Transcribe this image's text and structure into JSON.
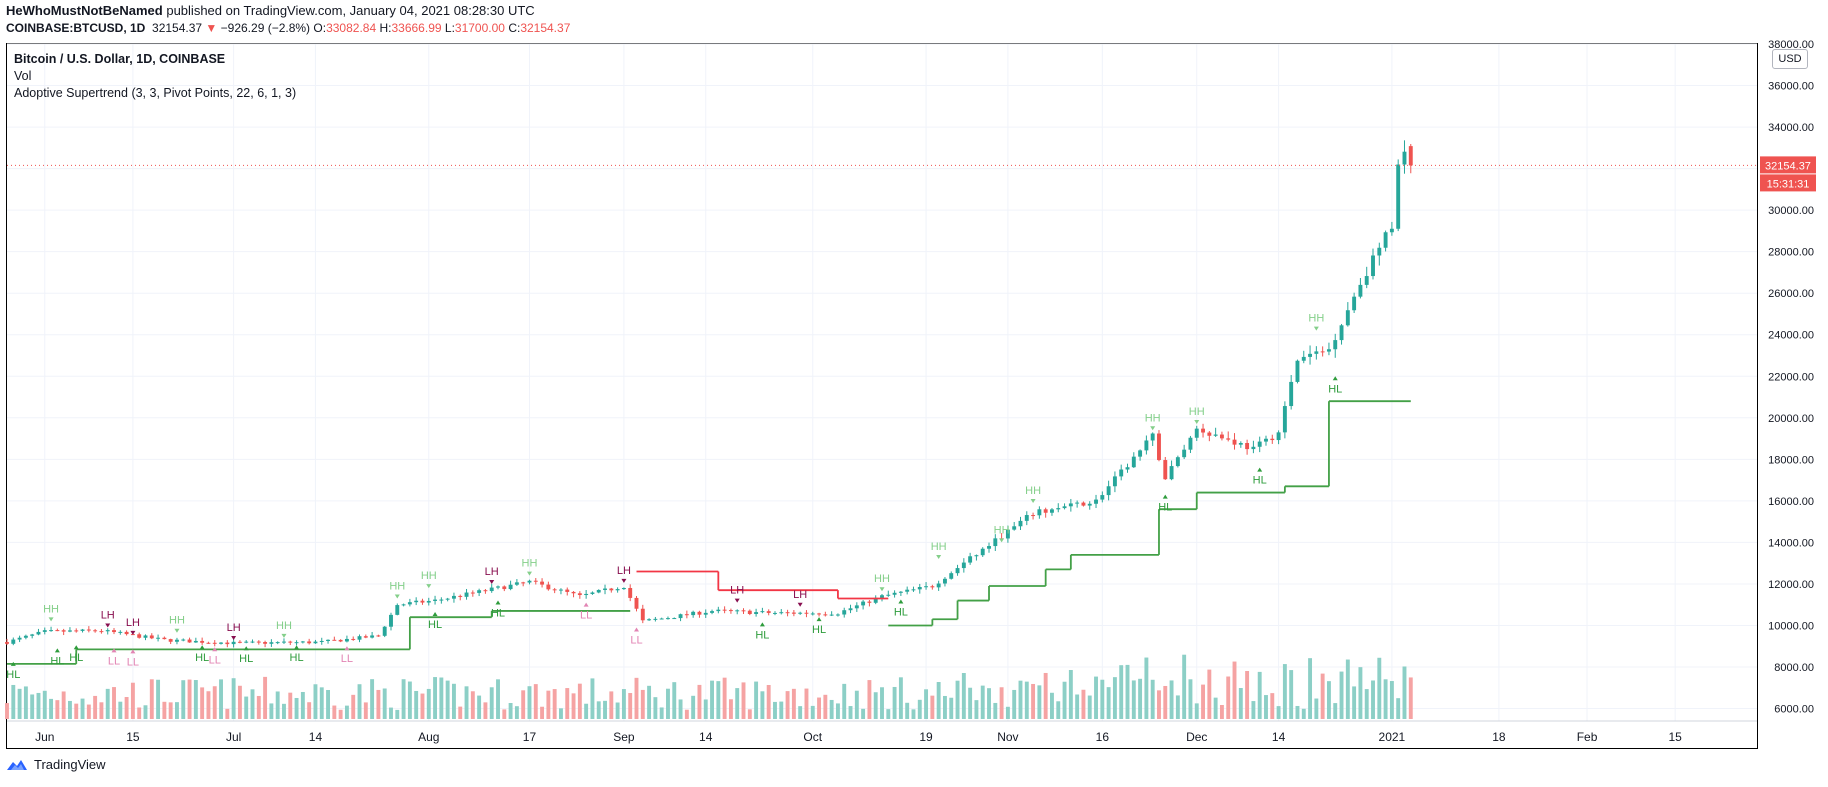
{
  "header": {
    "author": "HeWhoMustNotBeNamed",
    "published_text": " published on TradingView.com, January 04, 2021 08:28:30 UTC",
    "symbol": "COINBASE:BTCUSD, 1D",
    "last": "32154.37",
    "change_arrow": "▼",
    "change": "−926.29 (−2.8%)",
    "o_label": "O:",
    "o_value": "33082.84",
    "h_label": "H:",
    "h_value": "33666.99",
    "l_label": "L:",
    "l_value": "31700.00",
    "c_label": "C:",
    "c_value": "32154.37"
  },
  "legend": {
    "title": "Bitcoin / U.S. Dollar, 1D, COINBASE",
    "vol": "Vol",
    "indicator": "Adoptive Supertrend (3, 3, Pivot Points, 22, 6, 1, 3)"
  },
  "currency_button": "USD",
  "price_label": "32154.37",
  "countdown_label": "15:31:31",
  "footer": {
    "brand": "TradingView",
    "logo_icon": "tradingview-logo-icon"
  },
  "colors": {
    "up": "#26a69a",
    "down": "#ef5350",
    "vol_up": "#8ccfc6",
    "vol_down": "#f5a3a3",
    "trend_up": "#43a047",
    "trend_down": "#f23645",
    "label_hh": "#84cf8a",
    "label_hl": "#2e9c3c",
    "label_lh": "#880e4f",
    "label_ll": "#e285b4"
  },
  "chart_data": {
    "type": "candlestick",
    "y_range": [
      5400,
      38000
    ],
    "y_ticks": [
      "6000.00",
      "8000.00",
      "10000.00",
      "12000.00",
      "14000.00",
      "16000.00",
      "18000.00",
      "20000.00",
      "22000.00",
      "24000.00",
      "26000.00",
      "28000.00",
      "30000.00",
      "32000.00",
      "34000.00",
      "36000.00",
      "38000.00"
    ],
    "x_ticks": [
      {
        "label": "Jun",
        "date": "2020-06-01"
      },
      {
        "label": "15",
        "date": "2020-06-15"
      },
      {
        "label": "Jul",
        "date": "2020-07-01"
      },
      {
        "label": "14",
        "date": "2020-07-14"
      },
      {
        "label": "Aug",
        "date": "2020-08-01"
      },
      {
        "label": "17",
        "date": "2020-08-17"
      },
      {
        "label": "Sep",
        "date": "2020-09-01"
      },
      {
        "label": "14",
        "date": "2020-09-14"
      },
      {
        "label": "Oct",
        "date": "2020-10-01"
      },
      {
        "label": "19",
        "date": "2020-10-19"
      },
      {
        "label": "Nov",
        "date": "2020-11-01"
      },
      {
        "label": "16",
        "date": "2020-11-16"
      },
      {
        "label": "Dec",
        "date": "2020-12-01"
      },
      {
        "label": "14",
        "date": "2020-12-14"
      },
      {
        "label": "2021",
        "date": "2021-01-01"
      },
      {
        "label": "18",
        "date": "2021-01-18"
      },
      {
        "label": "Feb",
        "date": "2021-02-01"
      },
      {
        "label": "15",
        "date": "2021-02-15"
      }
    ],
    "start_date": "2020-05-26",
    "x_date_range": [
      "2020-05-26",
      "2021-02-28"
    ],
    "last_price": 32154.37,
    "close_path": [
      [
        "2020-05-26",
        9200
      ],
      [
        "2020-06-01",
        9700
      ],
      [
        "2020-06-10",
        9750
      ],
      [
        "2020-06-20",
        9300
      ],
      [
        "2020-07-01",
        9150
      ],
      [
        "2020-07-15",
        9200
      ],
      [
        "2020-07-24",
        9500
      ],
      [
        "2020-07-27",
        11000
      ],
      [
        "2020-08-02",
        11200
      ],
      [
        "2020-08-17",
        12100
      ],
      [
        "2020-08-25",
        11400
      ],
      [
        "2020-09-01",
        11900
      ],
      [
        "2020-09-04",
        10200
      ],
      [
        "2020-09-15",
        10700
      ],
      [
        "2020-09-25",
        10600
      ],
      [
        "2020-10-05",
        10600
      ],
      [
        "2020-10-12",
        11400
      ],
      [
        "2020-10-20",
        11900
      ],
      [
        "2020-10-25",
        13000
      ],
      [
        "2020-11-05",
        15400
      ],
      [
        "2020-11-15",
        16000
      ],
      [
        "2020-11-24",
        19100
      ],
      [
        "2020-11-26",
        17100
      ],
      [
        "2020-12-01",
        19500
      ],
      [
        "2020-12-10",
        18500
      ],
      [
        "2020-12-14",
        19300
      ],
      [
        "2020-12-17",
        22800
      ],
      [
        "2020-12-22",
        23300
      ],
      [
        "2020-12-27",
        26500
      ],
      [
        "2021-01-01",
        29300
      ],
      [
        "2021-01-02",
        32000
      ],
      [
        "2021-01-03",
        33082.84
      ],
      [
        "2021-01-04",
        32154.37
      ]
    ],
    "volume_range": [
      0,
      45000
    ],
    "supertrend": [
      {
        "from": "2020-05-26",
        "to": "2020-06-06",
        "value": 8150,
        "trend": "up"
      },
      {
        "from": "2020-06-06",
        "to": "2020-06-28",
        "value": 8850,
        "trend": "up"
      },
      {
        "from": "2020-06-28",
        "to": "2020-07-29",
        "value": 8850,
        "trend": "up"
      },
      {
        "from": "2020-07-29",
        "to": "2020-08-11",
        "value": 10400,
        "trend": "up"
      },
      {
        "from": "2020-08-11",
        "to": "2020-09-02",
        "value": 10700,
        "trend": "up"
      },
      {
        "from": "2020-09-03",
        "to": "2020-09-16",
        "value": 12600,
        "trend": "down"
      },
      {
        "from": "2020-09-16",
        "to": "2020-10-05",
        "value": 11700,
        "trend": "down"
      },
      {
        "from": "2020-10-05",
        "to": "2020-10-13",
        "value": 11300,
        "trend": "down"
      },
      {
        "from": "2020-10-13",
        "to": "2020-10-20",
        "value": 10000,
        "trend": "up"
      },
      {
        "from": "2020-10-20",
        "to": "2020-10-24",
        "value": 10300,
        "trend": "up"
      },
      {
        "from": "2020-10-24",
        "to": "2020-10-29",
        "value": 11200,
        "trend": "up"
      },
      {
        "from": "2020-10-29",
        "to": "2020-11-07",
        "value": 11900,
        "trend": "up"
      },
      {
        "from": "2020-11-07",
        "to": "2020-11-11",
        "value": 12700,
        "trend": "up"
      },
      {
        "from": "2020-11-11",
        "to": "2020-11-25",
        "value": 13400,
        "trend": "up"
      },
      {
        "from": "2020-11-25",
        "to": "2020-12-01",
        "value": 15600,
        "trend": "up"
      },
      {
        "from": "2020-12-01",
        "to": "2020-12-15",
        "value": 16400,
        "trend": "up"
      },
      {
        "from": "2020-12-15",
        "to": "2020-12-22",
        "value": 16700,
        "trend": "up"
      },
      {
        "from": "2020-12-22",
        "to": "2021-01-04",
        "value": 20800,
        "trend": "up"
      }
    ],
    "pivot_labels": [
      {
        "text": "HL",
        "date": "2020-05-27",
        "price": 8250,
        "kind": "HL",
        "pos": "below"
      },
      {
        "text": "HH",
        "date": "2020-06-02",
        "price": 10200,
        "kind": "HH",
        "pos": "above"
      },
      {
        "text": "HL",
        "date": "2020-06-03",
        "price": 8900,
        "kind": "HL",
        "pos": "below"
      },
      {
        "text": "HL",
        "date": "2020-06-06",
        "price": 9050,
        "kind": "HL",
        "pos": "below"
      },
      {
        "text": "LH",
        "date": "2020-06-11",
        "price": 9900,
        "kind": "LH",
        "pos": "above"
      },
      {
        "text": "LL",
        "date": "2020-06-12",
        "price": 8900,
        "kind": "LL",
        "pos": "below"
      },
      {
        "text": "LL",
        "date": "2020-06-15",
        "price": 8850,
        "kind": "LL",
        "pos": "below"
      },
      {
        "text": "LH",
        "date": "2020-06-15",
        "price": 9550,
        "kind": "LH",
        "pos": "above"
      },
      {
        "text": "HH",
        "date": "2020-06-22",
        "price": 9650,
        "kind": "HH",
        "pos": "above"
      },
      {
        "text": "HL",
        "date": "2020-06-26",
        "price": 9050,
        "kind": "HL",
        "pos": "below"
      },
      {
        "text": "LL",
        "date": "2020-06-28",
        "price": 8950,
        "kind": "LL",
        "pos": "below"
      },
      {
        "text": "LH",
        "date": "2020-07-01",
        "price": 9300,
        "kind": "LH",
        "pos": "above"
      },
      {
        "text": "HL",
        "date": "2020-07-03",
        "price": 9000,
        "kind": "HL",
        "pos": "below"
      },
      {
        "text": "HH",
        "date": "2020-07-09",
        "price": 9400,
        "kind": "HH",
        "pos": "above"
      },
      {
        "text": "HL",
        "date": "2020-07-11",
        "price": 9050,
        "kind": "HL",
        "pos": "below"
      },
      {
        "text": "LL",
        "date": "2020-07-19",
        "price": 9000,
        "kind": "LL",
        "pos": "below"
      },
      {
        "text": "HH",
        "date": "2020-07-27",
        "price": 11300,
        "kind": "HH",
        "pos": "above"
      },
      {
        "text": "HH",
        "date": "2020-08-01",
        "price": 11800,
        "kind": "HH",
        "pos": "above"
      },
      {
        "text": "HL",
        "date": "2020-08-02",
        "price": 10650,
        "kind": "HL",
        "pos": "below"
      },
      {
        "text": "LH",
        "date": "2020-08-11",
        "price": 12000,
        "kind": "LH",
        "pos": "above"
      },
      {
        "text": "HL",
        "date": "2020-08-12",
        "price": 11200,
        "kind": "HL",
        "pos": "below"
      },
      {
        "text": "HH",
        "date": "2020-08-17",
        "price": 12400,
        "kind": "HH",
        "pos": "above"
      },
      {
        "text": "LL",
        "date": "2020-08-26",
        "price": 11100,
        "kind": "LL",
        "pos": "below"
      },
      {
        "text": "LH",
        "date": "2020-09-01",
        "price": 12050,
        "kind": "LH",
        "pos": "above"
      },
      {
        "text": "LL",
        "date": "2020-09-03",
        "price": 9900,
        "kind": "LL",
        "pos": "below"
      },
      {
        "text": "LH",
        "date": "2020-09-19",
        "price": 11100,
        "kind": "LH",
        "pos": "above"
      },
      {
        "text": "HL",
        "date": "2020-09-23",
        "price": 10150,
        "kind": "HL",
        "pos": "below"
      },
      {
        "text": "LH",
        "date": "2020-09-29",
        "price": 10900,
        "kind": "LH",
        "pos": "above"
      },
      {
        "text": "HL",
        "date": "2020-10-02",
        "price": 10400,
        "kind": "HL",
        "pos": "below"
      },
      {
        "text": "HH",
        "date": "2020-10-12",
        "price": 11650,
        "kind": "HH",
        "pos": "above"
      },
      {
        "text": "HL",
        "date": "2020-10-15",
        "price": 11250,
        "kind": "HL",
        "pos": "below"
      },
      {
        "text": "HH",
        "date": "2020-10-21",
        "price": 13200,
        "kind": "HH",
        "pos": "above"
      },
      {
        "text": "HH",
        "date": "2020-11-05",
        "price": 15900,
        "kind": "HH",
        "pos": "above"
      },
      {
        "text": "HH",
        "date": "2020-10-31",
        "price": 14000,
        "kind": "HH",
        "pos": "above"
      },
      {
        "text": "HH",
        "date": "2020-11-24",
        "price": 19400,
        "kind": "HH",
        "pos": "above"
      },
      {
        "text": "HL",
        "date": "2020-11-26",
        "price": 16300,
        "kind": "HL",
        "pos": "below"
      },
      {
        "text": "HH",
        "date": "2020-12-01",
        "price": 19700,
        "kind": "HH",
        "pos": "above"
      },
      {
        "text": "HL",
        "date": "2020-12-11",
        "price": 17600,
        "kind": "HL",
        "pos": "below"
      },
      {
        "text": "HH",
        "date": "2020-12-20",
        "price": 24200,
        "kind": "HH",
        "pos": "above"
      },
      {
        "text": "HL",
        "date": "2020-12-23",
        "price": 22000,
        "kind": "HL",
        "pos": "below"
      }
    ]
  }
}
